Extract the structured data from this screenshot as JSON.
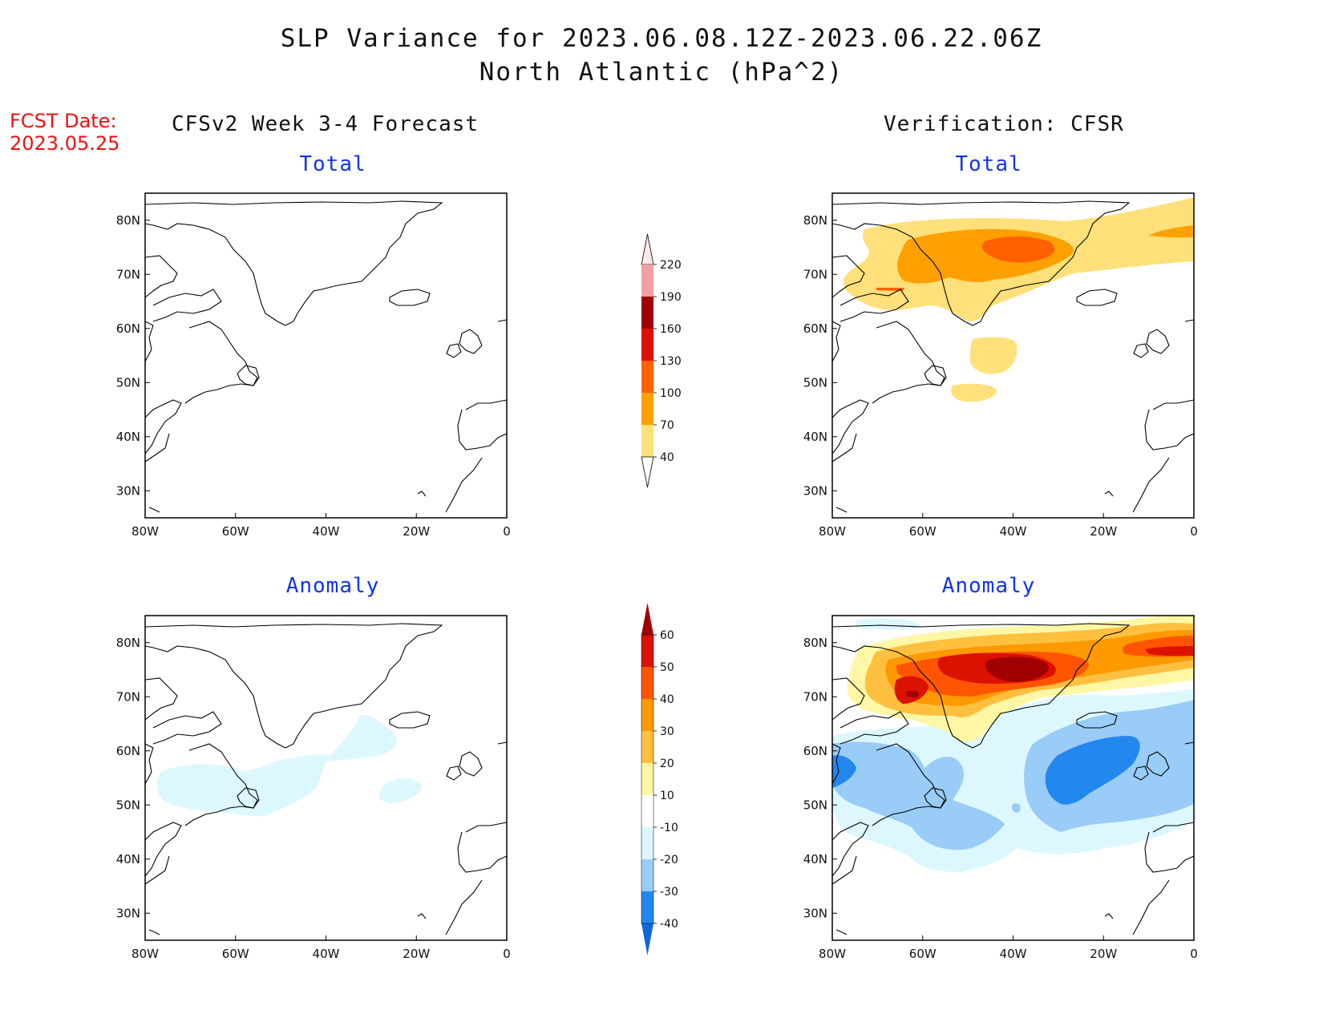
{
  "header": {
    "title_line1": "SLP Variance for 2023.06.08.12Z-2023.06.22.06Z",
    "title_line2": "North Atlantic (hPa^2)",
    "fcst_label": "FCST Date:",
    "fcst_date": "2023.05.25"
  },
  "columns": {
    "left": "CFSv2 Week 3-4 Forecast",
    "right": "Verification: CFSR"
  },
  "panels": {
    "total_label": "Total",
    "anomaly_label": "Anomaly"
  },
  "axes": {
    "lon_ticks": [
      "80W",
      "60W",
      "40W",
      "20W",
      "0"
    ],
    "lat_ticks": [
      "30N",
      "40N",
      "50N",
      "60N",
      "70N",
      "80N"
    ],
    "lon_range": [
      -80,
      0
    ],
    "lat_range": [
      25,
      85
    ]
  },
  "colorbars": {
    "total": {
      "levels": [
        "40",
        "70",
        "100",
        "130",
        "160",
        "190",
        "220"
      ],
      "colors": [
        "#ffe07a",
        "#ffa000",
        "#ff6000",
        "#e01000",
        "#a00000",
        "#f0a0a0",
        "#fde8e8"
      ]
    },
    "anomaly": {
      "levels": [
        "-40",
        "-30",
        "-20",
        "-10",
        "10",
        "20",
        "30",
        "40",
        "50",
        "60"
      ],
      "colors": [
        "#1066dd",
        "#2288ee",
        "#99ccf6",
        "#ddf7ff",
        "#ffffff",
        "#fff7a6",
        "#ffc040",
        "#ff9900",
        "#ff5500",
        "#dd1100",
        "#a00000"
      ]
    }
  }
}
